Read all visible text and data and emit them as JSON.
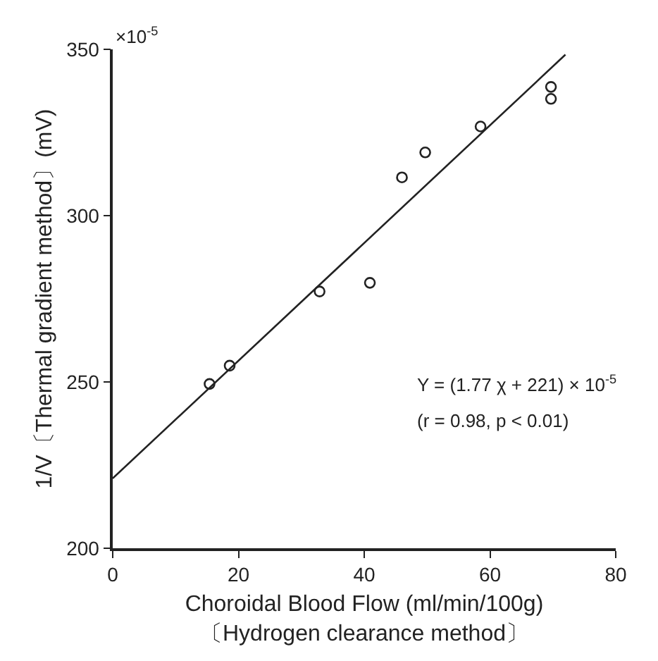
{
  "chart_data": {
    "type": "scatter",
    "xlabel": "Choroidal Blood Flow (ml/min/100g)\n〔Hydrogen clearance method〕",
    "ylabel": "1/V〔Thermal gradient method〕(mV)",
    "series": [
      {
        "color": "#222222",
        "marker": "circle",
        "x": [
          15.4,
          18.6,
          32.9,
          40.9,
          46.0,
          49.7,
          58.5,
          69.7,
          69.7
        ],
        "values": [
          249.4,
          254.9,
          277.2,
          279.8,
          311.5,
          319.0,
          326.8,
          338.7,
          335.1
        ]
      },
      {
        "type": "line",
        "color": "#222222",
        "line_style": "solid",
        "x": [
          0,
          72
        ],
        "values": [
          221,
          348.4
        ]
      }
    ],
    "xlim": [
      0,
      80
    ],
    "xticks": [
      0,
      20,
      40,
      60,
      80
    ],
    "ylim": [
      200,
      350
    ],
    "yticks": [
      200,
      250,
      300,
      350
    ],
    "annotations": [
      "×10$^{-5}$",
      "Y = (1.77 χ + 221) × 10$^{-5}$",
      "(r = 0.98, p < 0.01)"
    ]
  }
}
